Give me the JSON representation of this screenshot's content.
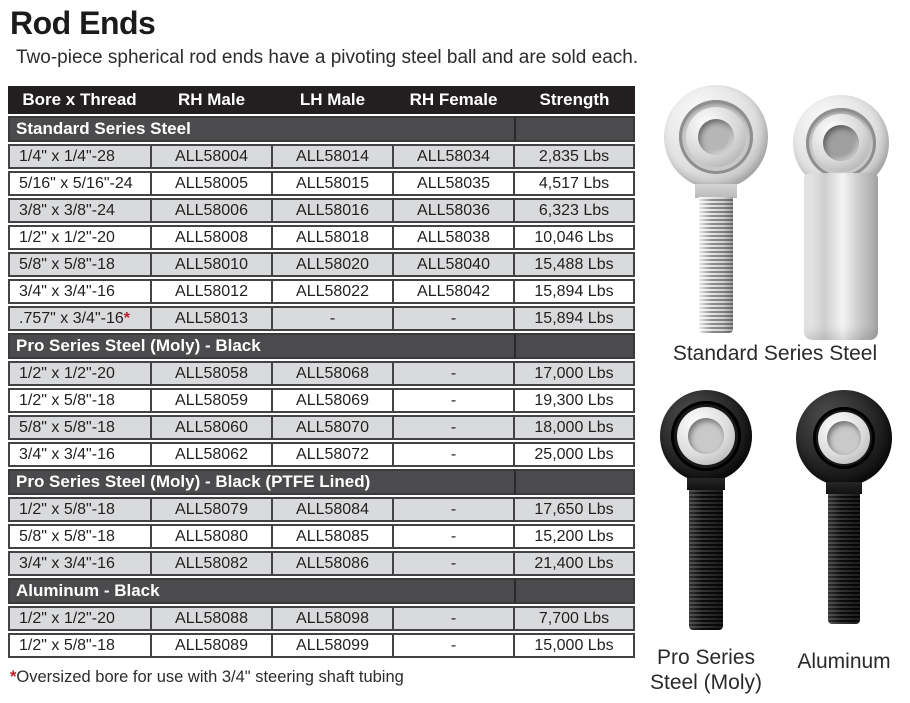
{
  "page": {
    "title": "Rod Ends",
    "subtitle": "Two-piece spherical rod ends have a pivoting steel ball and are sold each."
  },
  "table": {
    "columns": [
      "Bore x Thread",
      "RH Male",
      "LH Male",
      "RH Female",
      "Strength"
    ],
    "sections": [
      {
        "header": "Standard Series Steel",
        "rows": [
          [
            "1/4\" x 1/4\"-28",
            "ALL58004",
            "ALL58014",
            "ALL58034",
            "2,835 Lbs"
          ],
          [
            "5/16\" x 5/16\"-24",
            "ALL58005",
            "ALL58015",
            "ALL58035",
            "4,517 Lbs"
          ],
          [
            "3/8\" x 3/8\"-24",
            "ALL58006",
            "ALL58016",
            "ALL58036",
            "6,323 Lbs"
          ],
          [
            "1/2\" x 1/2\"-20",
            "ALL58008",
            "ALL58018",
            "ALL58038",
            "10,046 Lbs"
          ],
          [
            "5/8\" x 5/8\"-18",
            "ALL58010",
            "ALL58020",
            "ALL58040",
            "15,488 Lbs"
          ],
          [
            "3/4\" x 3/4\"-16",
            "ALL58012",
            "ALL58022",
            "ALL58042",
            "15,894 Lbs"
          ],
          [
            ".757\" x 3/4\"-16*",
            "ALL58013",
            "-",
            "-",
            "15,894 Lbs"
          ]
        ]
      },
      {
        "header": "Pro Series Steel (Moly) - Black",
        "rows": [
          [
            "1/2\" x 1/2\"-20",
            "ALL58058",
            "ALL58068",
            "-",
            "17,000 Lbs"
          ],
          [
            "1/2\" x 5/8\"-18",
            "ALL58059",
            "ALL58069",
            "-",
            "19,300 Lbs"
          ],
          [
            "5/8\" x 5/8\"-18",
            "ALL58060",
            "ALL58070",
            "-",
            "18,000 Lbs"
          ],
          [
            "3/4\" x 3/4\"-16",
            "ALL58062",
            "ALL58072",
            "-",
            "25,000 Lbs"
          ]
        ]
      },
      {
        "header": "Pro Series Steel (Moly) - Black (PTFE Lined)",
        "rows": [
          [
            "1/2\" x 5/8\"-18",
            "ALL58079",
            "ALL58084",
            "-",
            "17,650 Lbs"
          ],
          [
            "5/8\" x 5/8\"-18",
            "ALL58080",
            "ALL58085",
            "-",
            "15,200 Lbs"
          ],
          [
            "3/4\" x 3/4\"-16",
            "ALL58082",
            "ALL58086",
            "-",
            "21,400 Lbs"
          ]
        ]
      },
      {
        "header": "Aluminum - Black",
        "rows": [
          [
            "1/2\" x 1/2\"-20",
            "ALL58088",
            "ALL58098",
            "-",
            "7,700 Lbs"
          ],
          [
            "1/2\" x 5/8\"-18",
            "ALL58089",
            "ALL58099",
            "-",
            "15,000 Lbs"
          ]
        ]
      }
    ]
  },
  "footnote": {
    "marker": "*",
    "text": "Oversized bore for use with 3/4\" steering shaft tubing"
  },
  "images": {
    "standard_caption": "Standard Series Steel",
    "pro_caption_line1": "Pro Series",
    "pro_caption_line2": "Steel (Moly)",
    "aluminum_caption": "Aluminum"
  },
  "colors": {
    "header_bg": "#231f20",
    "section_bg": "#4b4b4d",
    "row_gray": "#d9dadb",
    "row_white": "#ffffff",
    "border": "#434345",
    "footnote_red": "#bf1e24"
  }
}
